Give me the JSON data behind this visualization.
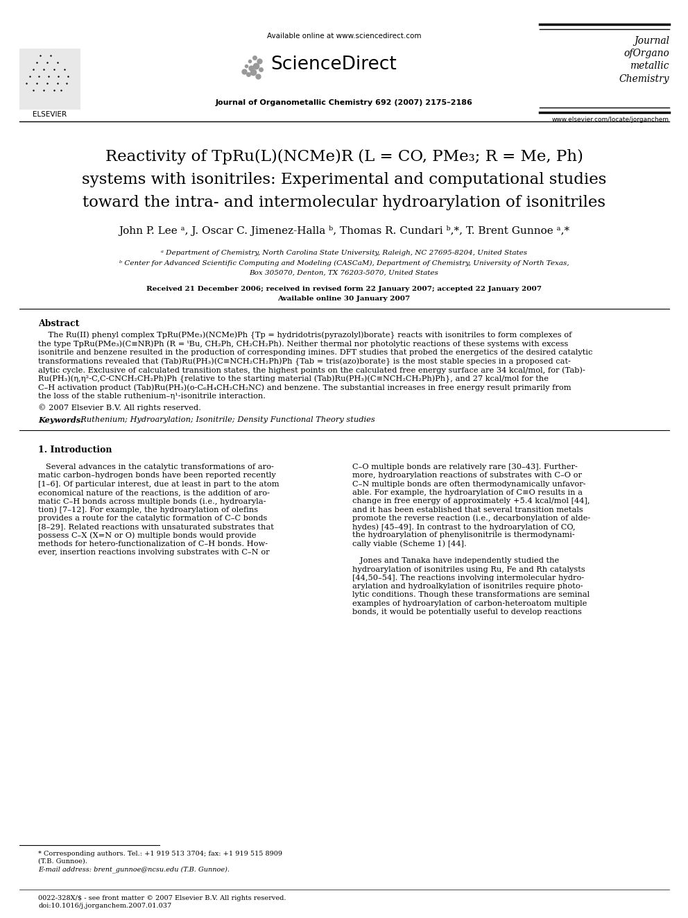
{
  "bg_color": "#ffffff",
  "available_online": "Available online at www.sciencedirect.com",
  "sciencedirect": "ScienceDirect",
  "journal_name": "Journal of Organometallic Chemistry 692 (2007) 2175–2186",
  "journal_right": [
    "Journal",
    "ofOrgano",
    "metallic",
    "Chemistry"
  ],
  "journal_url": "www.elsevier.com/locate/jorganchem",
  "elsevier_label": "ELSEVIER",
  "title_line1": "Reactivity of TpRu(L)(NCMe)R (L = CO, PMe₃; R = Me, Ph)",
  "title_line2": "systems with isonitriles: Experimental and computational studies",
  "title_line3": "toward the intra- and intermolecular hydroarylation of isonitriles",
  "authors": "John P. Lee ᵃ, J. Oscar C. Jimenez-Halla ᵇ, Thomas R. Cundari ᵇ,*, T. Brent Gunnoe ᵃ,*",
  "aff_a": "ᵃ Department of Chemistry, North Carolina State University, Raleigh, NC 27695-8204, United States",
  "aff_b1": "ᵇ Center for Advanced Scientific Computing and Modeling (CASCaM), Department of Chemistry, University of North Texas,",
  "aff_b2": "Box 305070, Denton, TX 76203-5070, United States",
  "received": "Received 21 December 2006; received in revised form 22 January 2007; accepted 22 January 2007",
  "available": "Available online 30 January 2007",
  "abstract_title": "Abstract",
  "abstract_indent": "    The Ru(II) phenyl complex TpRu(PMe₃)(NCMe)Ph {Tp = hydridotris(pyrazolyl)borate} reacts with isonitriles to form complexes of",
  "abstract_line2": "the type TpRu(PMe₃)(C≡NR)Ph (R = ᵗBu, CH₂Ph, CH₂CH₂Ph). Neither thermal nor photolytic reactions of these systems with excess",
  "abstract_line3": "isonitrile and benzene resulted in the production of corresponding imines. DFT studies that probed the energetics of the desired catalytic",
  "abstract_line4": "transformations revealed that (Tab)Ru(PH₃)(C≡NCH₂CH₂Ph)Ph {Tab = tris(azo)borate} is the most stable species in a proposed cat-",
  "abstract_line5": "alytic cycle. Exclusive of calculated transition states, the highest points on the calculated free energy surface are 34 kcal/mol, for (Tab)-",
  "abstract_line6": "Ru(PH₃)(η,η²-C,C-CNCH₂CH₂Ph)Ph {relative to the starting material (Tab)Ru(PH₃)(C≡NCH₂CH₂Ph)Ph}, and 27 kcal/mol for the",
  "abstract_line7": "C–H activation product (Tab)Ru(PH₃)(o-C₆H₄CH₂CH₂NC) and benzene. The substantial increases in free energy result primarily from",
  "abstract_line8": "the loss of the stable ruthenium–η¹-isonitrile interaction.",
  "copyright": "© 2007 Elsevier B.V. All rights reserved.",
  "keywords_bold": "Keywords:",
  "keywords_rest": "  Ruthenium; Hydroarylation; Isonitrile; Density Functional Theory studies",
  "sec1_title": "1. Introduction",
  "intro_left_lines": [
    "   Several advances in the catalytic transformations of aro-",
    "matic carbon–hydrogen bonds have been reported recently",
    "[1–6]. Of particular interest, due at least in part to the atom",
    "economical nature of the reactions, is the addition of aro-",
    "matic C–H bonds across multiple bonds (i.e., hydroaryla-",
    "tion) [7–12]. For example, the hydroarylation of olefins",
    "provides a route for the catalytic formation of C–C bonds",
    "[8–29]. Related reactions with unsaturated substrates that",
    "possess C–X (X=N or O) multiple bonds would provide",
    "methods for hetero-functionalization of C–H bonds. How-",
    "ever, insertion reactions involving substrates with C–N or"
  ],
  "intro_right_lines": [
    "C–O multiple bonds are relatively rare [30–43]. Further-",
    "more, hydroarylation reactions of substrates with C–O or",
    "C–N multiple bonds are often thermodynamically unfavor-",
    "able. For example, the hydroarylation of C≡O results in a",
    "change in free energy of approximately +5.4 kcal/mol [44],",
    "and it has been established that several transition metals",
    "promote the reverse reaction (i.e., decarbonylation of alde-",
    "hydes) [45–49]. In contrast to the hydroarylation of CO,",
    "the hydroarylation of phenylisonitrile is thermodynami-",
    "cally viable (Scheme 1) [44]."
  ],
  "intro_right2_lines": [
    "   Jones and Tanaka have independently studied the",
    "hydroarylation of isonitriles using Ru, Fe and Rh catalysts",
    "[44,50–54]. The reactions involving intermolecular hydro-",
    "arylation and hydroalkylation of isonitriles require photo-",
    "lytic conditions. Though these transformations are seminal",
    "examples of hydroarylation of carbon-heteroatom multiple",
    "bonds, it would be potentially useful to develop reactions"
  ],
  "footnote_line": "* Corresponding authors. Tel.: +1 919 513 3704; fax: +1 919 515 8909",
  "footnote_line2": "(T.B. Gunnoe).",
  "footnote_email": "E-mail address: brent_gunnoe@ncsu.edu (T.B. Gunnoe).",
  "footer1": "0022-328X/$ - see front matter © 2007 Elsevier B.V. All rights reserved.",
  "footer2": "doi:10.1016/j.jorganchem.2007.01.037"
}
